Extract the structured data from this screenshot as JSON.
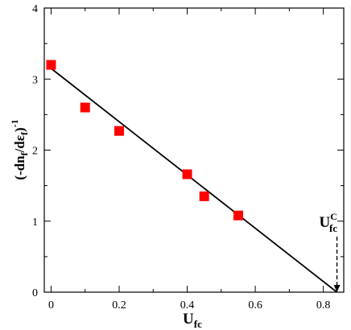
{
  "chart_data": {
    "type": "scatter",
    "xlim": [
      -0.02,
      0.86
    ],
    "ylim": [
      0,
      4
    ],
    "x_ticks": [
      0,
      0.2,
      0.4,
      0.6,
      0.8
    ],
    "x_tick_labels": [
      "0",
      "0.2",
      "0.4",
      "0.6",
      "0.8"
    ],
    "y_ticks": [
      0,
      1,
      2,
      3,
      4
    ],
    "y_tick_labels": [
      "0",
      "1",
      "2",
      "3",
      "4"
    ],
    "xlabel": "U",
    "xlabel_sub": "fc",
    "ylabel": "(-dn",
    "ylabel_sub1": "f",
    "ylabel_mid": "/dε",
    "ylabel_sub2": "f",
    "ylabel_end": ")",
    "ylabel_sup": "-1",
    "marker_color": "#ff0000",
    "series": [
      {
        "x": [
          0,
          0.1,
          0.2,
          0.4,
          0.45,
          0.55
        ],
        "y": [
          3.2,
          2.6,
          2.27,
          1.66,
          1.35,
          1.08
        ]
      }
    ],
    "fit_line": {
      "x": [
        0,
        0.84
      ],
      "y": [
        3.15,
        0.0
      ]
    },
    "annotation": {
      "main": "U",
      "sub": "fc",
      "sup": "C",
      "x": 0.84,
      "arrow_from_y": 0.78,
      "arrow_to_y": 0.0
    },
    "grid": false
  }
}
